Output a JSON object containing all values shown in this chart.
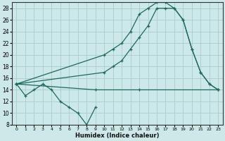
{
  "xlabel": "Humidex (Indice chaleur)",
  "bg_color": "#cce8e8",
  "grid_color": "#aacccc",
  "line_color": "#1a6b5a",
  "xlim": [
    -0.5,
    23.5
  ],
  "ylim": [
    8,
    29
  ],
  "yticks": [
    8,
    10,
    12,
    14,
    16,
    18,
    20,
    22,
    24,
    26,
    28
  ],
  "xticks": [
    0,
    1,
    2,
    3,
    4,
    5,
    6,
    7,
    8,
    9,
    10,
    11,
    12,
    13,
    14,
    15,
    16,
    17,
    18,
    19,
    20,
    21,
    22,
    23
  ],
  "series": [
    {
      "x": [
        0,
        9,
        14,
        23
      ],
      "y": [
        15,
        14,
        14,
        14
      ]
    },
    {
      "x": [
        0,
        1,
        2,
        3,
        4,
        5,
        6,
        7,
        8,
        9
      ],
      "y": [
        15,
        13,
        14,
        15,
        14,
        12,
        11,
        10,
        8,
        11
      ]
    },
    {
      "x": [
        0,
        10,
        11,
        12,
        13,
        14,
        15,
        16,
        17,
        18,
        19,
        20,
        21,
        22,
        23
      ],
      "y": [
        15,
        17,
        18,
        19,
        21,
        23,
        25,
        28,
        28,
        28,
        26,
        21,
        17,
        15,
        14
      ]
    },
    {
      "x": [
        0,
        10,
        11,
        12,
        13,
        14,
        15,
        16,
        17,
        18,
        19,
        20,
        21,
        22,
        23
      ],
      "y": [
        15,
        20,
        21,
        22,
        24,
        27,
        28,
        29,
        29,
        28,
        26,
        21,
        17,
        15,
        14
      ]
    }
  ]
}
